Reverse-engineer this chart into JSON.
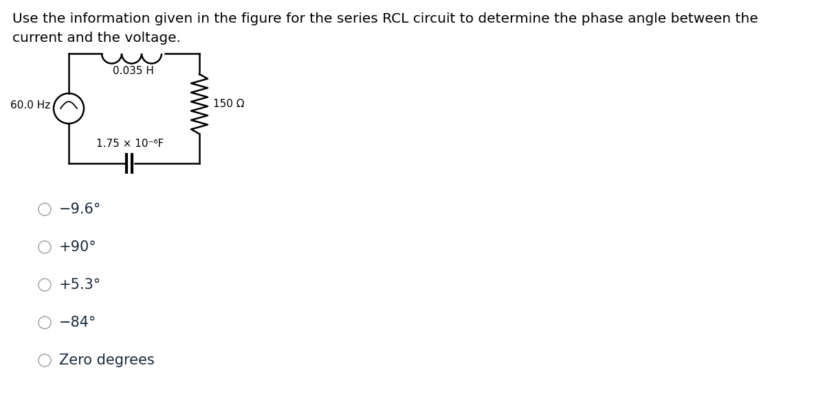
{
  "title_line1": "Use the information given in the figure for the series RCL circuit to determine the phase angle between the",
  "title_line2": "current and the voltage.",
  "bg_color": "#ffffff",
  "circuit": {
    "freq_label": "60.0 Hz",
    "inductor_label": "0.035 H",
    "capacitor_label": "1.75 × 10⁻⁶F",
    "resistor_label": "150 Ω"
  },
  "choices": [
    "−9.6°",
    "+90°",
    "+5.3°",
    "−84°",
    "Zero degrees"
  ],
  "title_fontsize": 14.5,
  "choice_fontsize": 15,
  "text_color": "#1a2a3a",
  "circuit_text_color": "#000000"
}
